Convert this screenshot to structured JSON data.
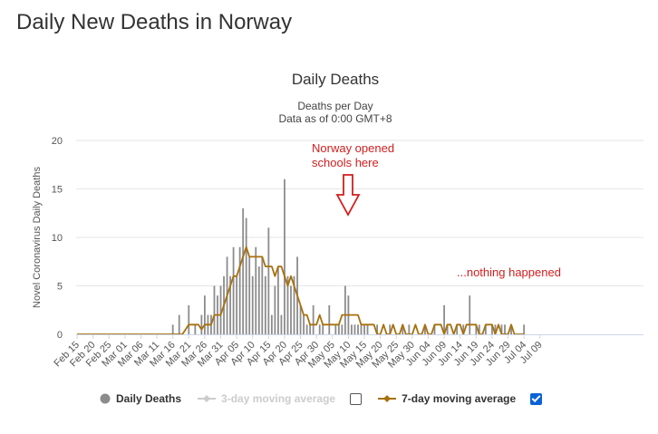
{
  "page": {
    "title": "Daily New Deaths in Norway"
  },
  "chart_data": {
    "type": "bar",
    "title": "Daily Deaths",
    "subtitle": [
      "Deaths per Day",
      "Data as of 0:00 GMT+8"
    ],
    "ylabel": "Novel Coronavirus Daily Deaths",
    "xlabel": "",
    "ylim": [
      0,
      20
    ],
    "yticks": [
      0,
      5,
      10,
      15,
      20
    ],
    "grid": true,
    "x_tick_labels": [
      "Feb 15",
      "Feb 20",
      "Feb 25",
      "Mar 01",
      "Mar 06",
      "Mar 11",
      "Mar 16",
      "Mar 21",
      "Mar 26",
      "Mar 31",
      "Apr 05",
      "Apr 10",
      "Apr 15",
      "Apr 20",
      "Apr 25",
      "Apr 30",
      "May 05",
      "May 10",
      "May 15",
      "May 20",
      "May 25",
      "May 30",
      "Jun 04",
      "Jun 09",
      "Jun 14",
      "Jun 19",
      "Jun 24",
      "Jun 29",
      "Jul 04",
      "Jul 09"
    ],
    "x_start": "Feb 15",
    "series": [
      {
        "name": "Daily Deaths",
        "kind": "bar",
        "color": "#8c8c8c",
        "values": [
          0,
          0,
          0,
          0,
          0,
          0,
          0,
          0,
          0,
          0,
          0,
          0,
          0,
          0,
          0,
          0,
          0,
          0,
          0,
          0,
          0,
          0,
          0,
          0,
          0,
          0,
          0,
          0,
          0,
          0,
          1,
          0,
          2,
          0,
          0,
          3,
          0,
          1,
          0,
          2,
          4,
          2,
          2,
          5,
          4,
          5,
          6,
          8,
          6,
          9,
          6,
          9,
          13,
          12,
          8,
          6,
          9,
          7,
          8,
          6,
          11,
          2,
          5,
          7,
          2,
          16,
          6,
          5,
          6,
          8,
          3,
          2,
          1,
          1,
          3,
          0,
          1,
          1,
          0,
          3,
          0,
          1,
          1,
          1,
          5,
          4,
          1,
          1,
          1,
          1,
          1,
          1,
          0,
          0,
          1,
          0,
          0,
          0,
          1,
          0,
          0,
          0,
          1,
          0,
          1,
          0,
          0,
          0,
          0,
          1,
          0,
          0,
          1,
          0,
          0,
          3,
          1,
          0,
          0,
          1,
          0,
          1,
          0,
          4,
          0,
          1,
          1,
          0,
          1,
          0,
          1,
          1,
          0,
          1,
          1,
          0,
          1,
          0,
          0,
          0,
          1,
          0,
          0
        ]
      },
      {
        "name": "3-day moving average",
        "kind": "line",
        "visible": false,
        "color": "#cccccc"
      },
      {
        "name": "7-day moving average",
        "kind": "line",
        "visible": true,
        "color": "#a8700d",
        "values": [
          0,
          0,
          0,
          0,
          0,
          0,
          0,
          0,
          0,
          0,
          0,
          0,
          0,
          0,
          0,
          0,
          0,
          0,
          0,
          0,
          0,
          0,
          0,
          0,
          0,
          0,
          0,
          0,
          0,
          0,
          0,
          0,
          0,
          0,
          0.5,
          1,
          1,
          1,
          1,
          0.5,
          1,
          1,
          1,
          2,
          2,
          2,
          3,
          4,
          5,
          6,
          6,
          7,
          8,
          9,
          8,
          8,
          8,
          8,
          8,
          7,
          7,
          7,
          6,
          7,
          7,
          6,
          5,
          6,
          5,
          4,
          3,
          2,
          2,
          1,
          1,
          1,
          2,
          1,
          1,
          1,
          1,
          1,
          1,
          2,
          2,
          2,
          2,
          2,
          2,
          1,
          1,
          1,
          1,
          1,
          0,
          0,
          1,
          0,
          0,
          1,
          0,
          0,
          1,
          0,
          0,
          0,
          1,
          0,
          0,
          1,
          0,
          0,
          1,
          1,
          1,
          0,
          1,
          1,
          0,
          1,
          1,
          0,
          1,
          1,
          1,
          1,
          0,
          0,
          1,
          1,
          1,
          0,
          1,
          0,
          0,
          0,
          1,
          0,
          0,
          0,
          0
        ]
      }
    ],
    "legend": {
      "position": "bottom"
    },
    "annotations": [
      {
        "text": [
          "Norway opened",
          "schools here"
        ],
        "color": "#d11e1e",
        "arrow": true
      },
      {
        "text": [
          "...nothing happened"
        ],
        "color": "#d11e1e",
        "arrow": false
      }
    ]
  }
}
